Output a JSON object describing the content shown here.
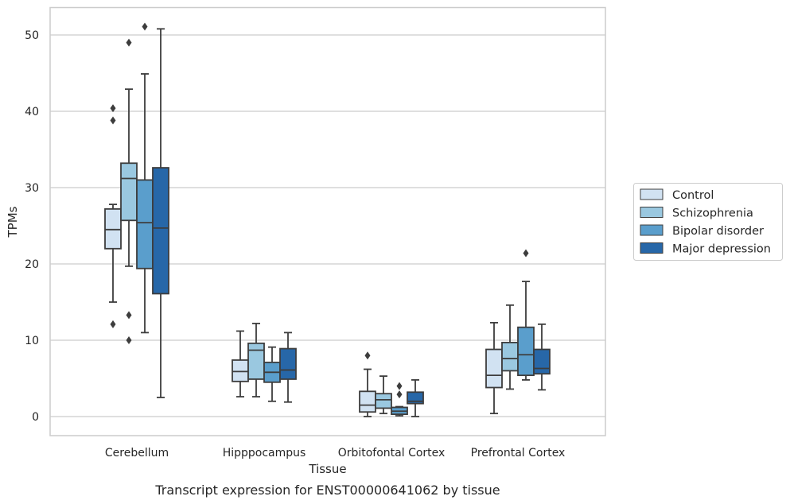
{
  "chart_data": {
    "type": "box",
    "xlabel": "Tissue",
    "ylabel": "TPMs",
    "caption": "Transcript expression for ENST00000641062 by tissue",
    "ylim": [
      -2.5,
      53.7
    ],
    "yticks": [
      0,
      10,
      20,
      30,
      40,
      50
    ],
    "grid": "horizontal",
    "legend_position": "right",
    "categories": [
      "Cerebellum",
      "Hipppocampus",
      "Orbitofontal Cortex",
      "Prefrontal Cortex"
    ],
    "series": [
      {
        "name": "Control",
        "color": "#d1e2f2",
        "boxes": [
          {
            "whisker_low": 15.0,
            "q1": 22.0,
            "median": 24.5,
            "q3": 27.2,
            "whisker_high": 27.8,
            "outliers": [
              12.1,
              38.8,
              40.4
            ]
          },
          {
            "whisker_low": 2.6,
            "q1": 4.6,
            "median": 5.9,
            "q3": 7.4,
            "whisker_high": 11.2,
            "outliers": []
          },
          {
            "whisker_low": 0.0,
            "q1": 0.6,
            "median": 1.5,
            "q3": 3.3,
            "whisker_high": 6.2,
            "outliers": [
              8.0
            ]
          },
          {
            "whisker_low": 0.4,
            "q1": 3.8,
            "median": 5.4,
            "q3": 8.8,
            "whisker_high": 12.3,
            "outliers": []
          }
        ]
      },
      {
        "name": "Schizophrenia",
        "color": "#9ac8e0",
        "boxes": [
          {
            "whisker_low": 19.7,
            "q1": 25.7,
            "median": 31.2,
            "q3": 33.2,
            "whisker_high": 42.9,
            "outliers": [
              10.0,
              13.3,
              49.0
            ]
          },
          {
            "whisker_low": 2.6,
            "q1": 4.9,
            "median": 8.7,
            "q3": 9.6,
            "whisker_high": 12.2,
            "outliers": []
          },
          {
            "whisker_low": 0.4,
            "q1": 1.1,
            "median": 2.2,
            "q3": 3.0,
            "whisker_high": 5.3,
            "outliers": []
          },
          {
            "whisker_low": 3.6,
            "q1": 6.0,
            "median": 7.6,
            "q3": 9.7,
            "whisker_high": 14.6,
            "outliers": []
          }
        ]
      },
      {
        "name": "Bipolar disorder",
        "color": "#5a9ecc",
        "boxes": [
          {
            "whisker_low": 11.0,
            "q1": 19.4,
            "median": 25.4,
            "q3": 31.0,
            "whisker_high": 44.9,
            "outliers": [
              51.1
            ]
          },
          {
            "whisker_low": 2.0,
            "q1": 4.5,
            "median": 5.8,
            "q3": 7.1,
            "whisker_high": 9.1,
            "outliers": []
          },
          {
            "whisker_low": 0.1,
            "q1": 0.3,
            "median": 0.7,
            "q3": 1.2,
            "whisker_high": 1.3,
            "outliers": [
              2.9,
              4.0
            ]
          },
          {
            "whisker_low": 4.8,
            "q1": 5.4,
            "median": 8.1,
            "q3": 11.7,
            "whisker_high": 17.7,
            "outliers": [
              21.4
            ]
          }
        ]
      },
      {
        "name": "Major depression",
        "color": "#2767a8",
        "boxes": [
          {
            "whisker_low": 2.5,
            "q1": 16.1,
            "median": 24.7,
            "q3": 32.6,
            "whisker_high": 50.8,
            "outliers": []
          },
          {
            "whisker_low": 1.9,
            "q1": 4.9,
            "median": 6.1,
            "q3": 8.9,
            "whisker_high": 11.0,
            "outliers": []
          },
          {
            "whisker_low": 0.0,
            "q1": 1.7,
            "median": 2.0,
            "q3": 3.2,
            "whisker_high": 4.8,
            "outliers": []
          },
          {
            "whisker_low": 3.5,
            "q1": 5.6,
            "median": 6.3,
            "q3": 8.8,
            "whisker_high": 12.1,
            "outliers": []
          }
        ]
      }
    ]
  }
}
